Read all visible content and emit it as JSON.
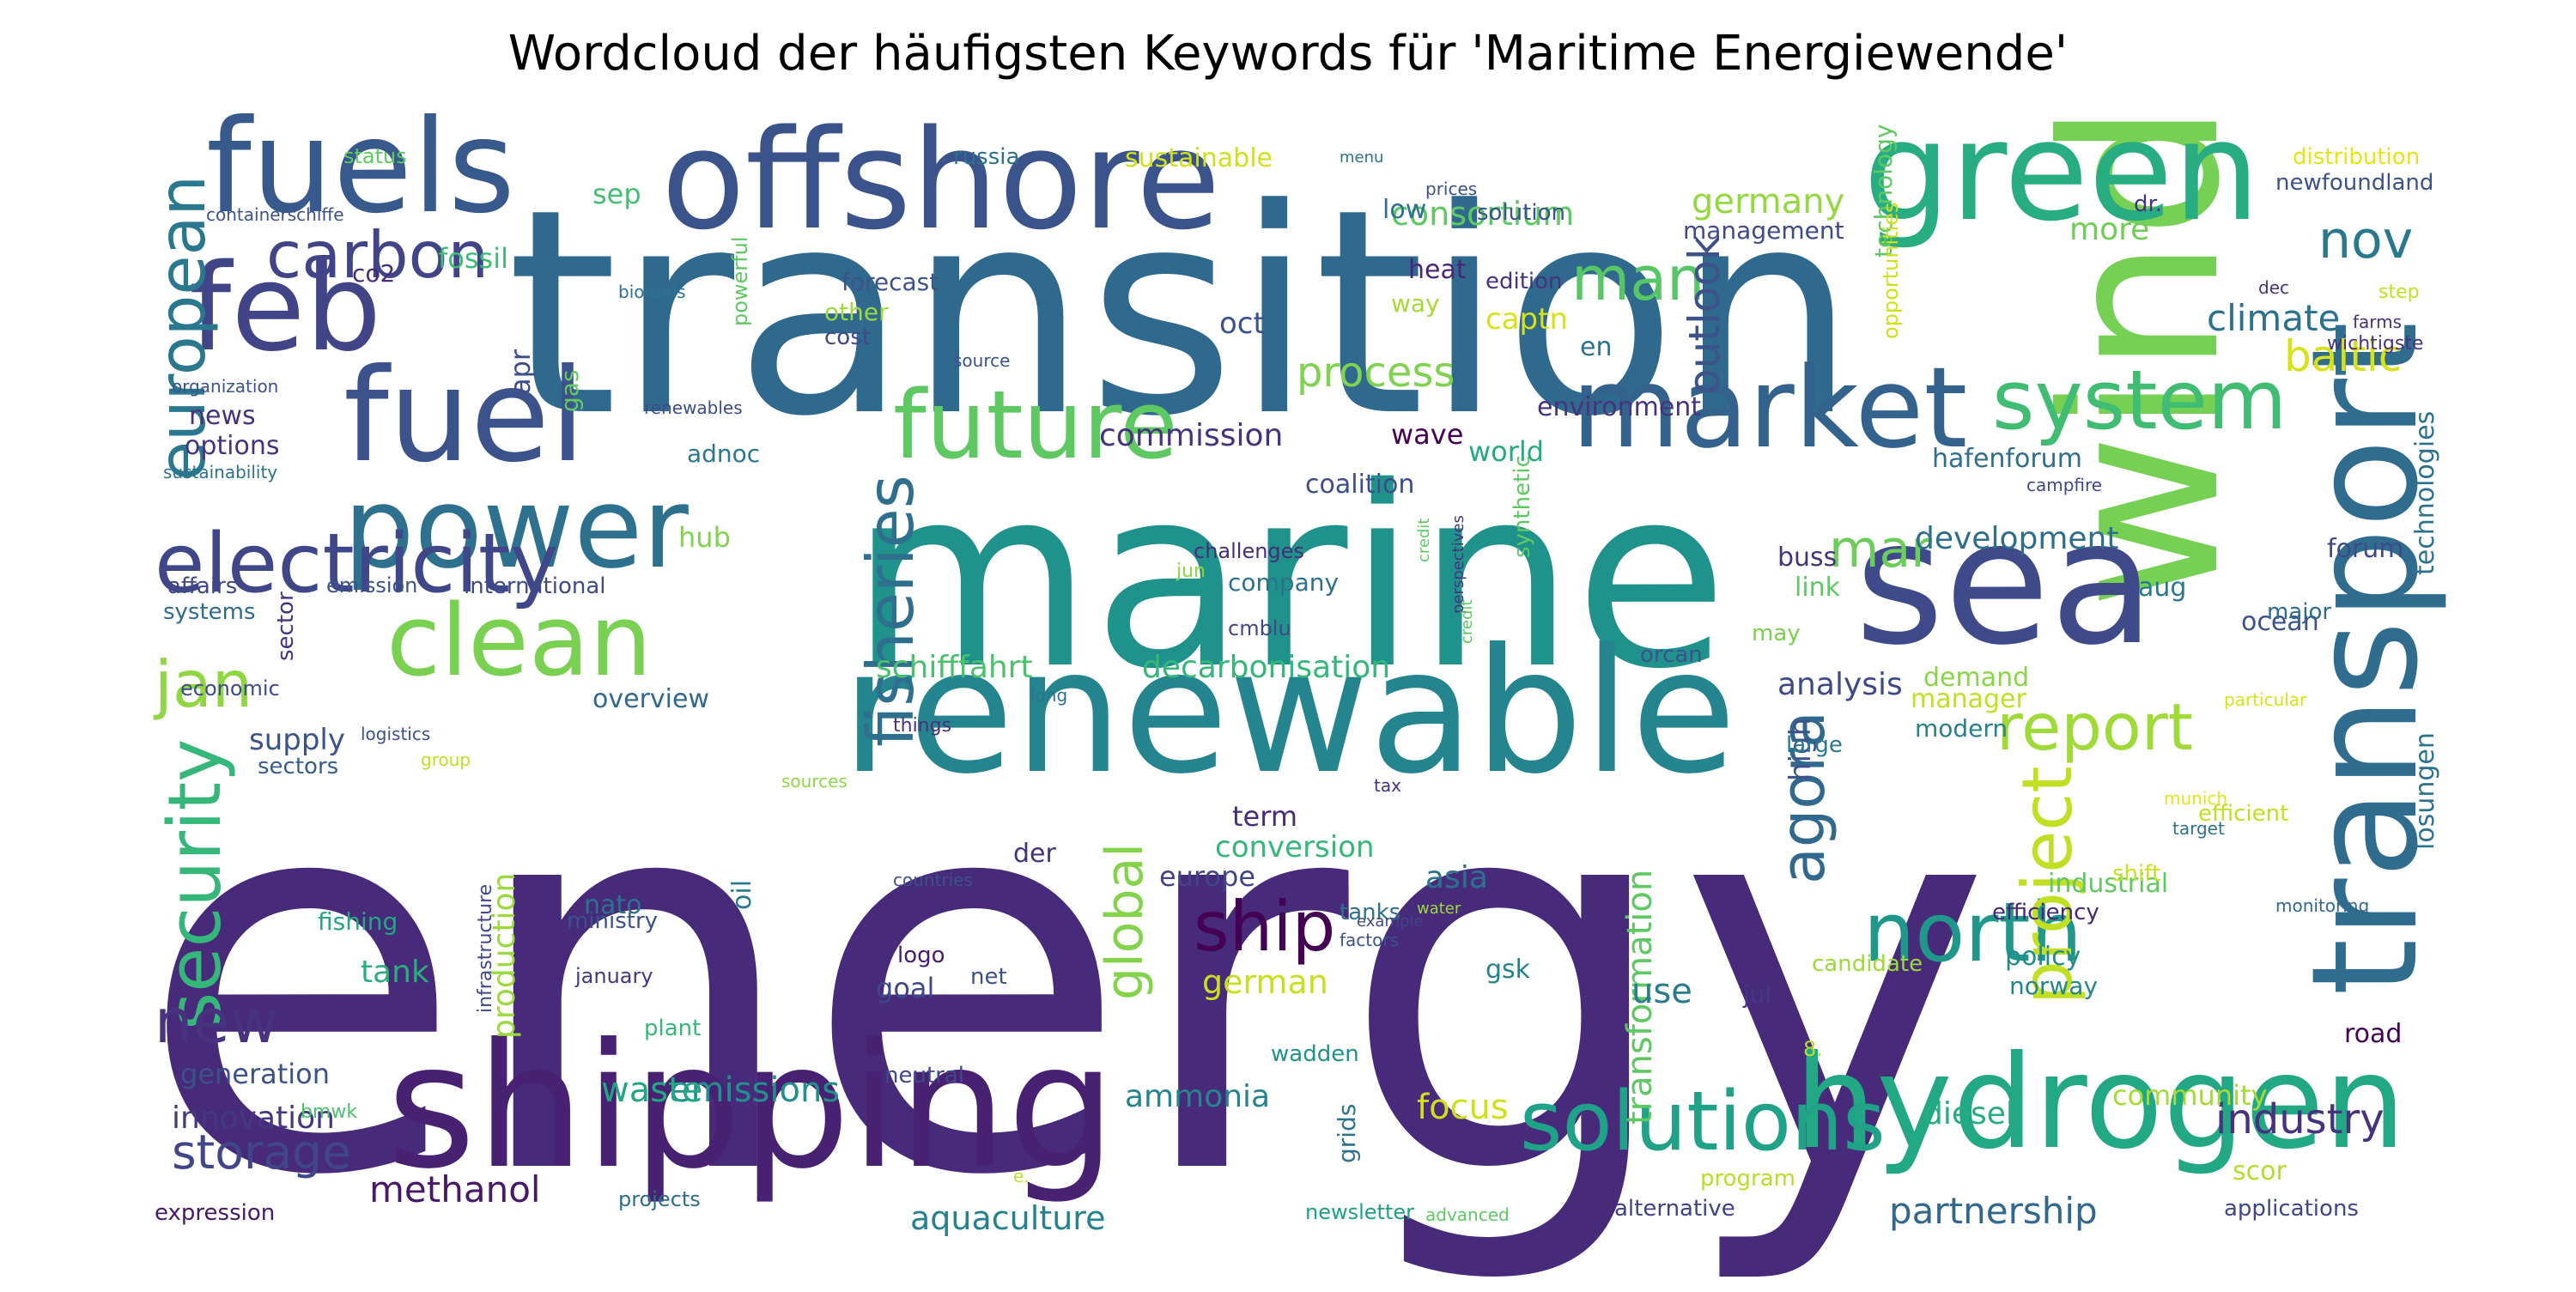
{
  "title": "Wordcloud der häufigsten Keywords für 'Maritime Energiewende'",
  "words": [
    {
      "text": "energy",
      "color": "#472a7a"
    },
    {
      "text": "transition",
      "color": "#30698e"
    },
    {
      "text": "marine",
      "color": "#20928c"
    },
    {
      "text": "wind",
      "color": "#75d054"
    },
    {
      "text": "shipping",
      "color": "#482173"
    },
    {
      "text": "renewable",
      "color": "#25858e"
    },
    {
      "text": "offshore",
      "color": "#3a538b"
    },
    {
      "text": "green",
      "color": "#27ad81"
    },
    {
      "text": "hydrogen",
      "color": "#22a884"
    },
    {
      "text": "sea",
      "color": "#3e4a89"
    },
    {
      "text": "transport",
      "color": "#2f6c8e"
    },
    {
      "text": "fuels",
      "color": "#38598c"
    },
    {
      "text": "power",
      "color": "#2d718e"
    },
    {
      "text": "fuel",
      "color": "#3b528b"
    },
    {
      "text": "market",
      "color": "#33638d"
    },
    {
      "text": "future",
      "color": "#5ec962"
    },
    {
      "text": "clean",
      "color": "#7ad151"
    },
    {
      "text": "feb",
      "color": "#414487"
    },
    {
      "text": "electricity",
      "color": "#3f4788"
    },
    {
      "text": "system",
      "color": "#40bd72"
    },
    {
      "text": "solutions",
      "color": "#1fa287"
    },
    {
      "text": "north",
      "color": "#1f988b"
    },
    {
      "text": "fisheries",
      "color": "#2e6f8e"
    },
    {
      "text": "security",
      "color": "#35b779"
    },
    {
      "text": "carbon",
      "color": "#414487"
    },
    {
      "text": "project",
      "color": "#c2df23"
    },
    {
      "text": "global",
      "color": "#84d44b"
    },
    {
      "text": "agora",
      "color": "#31688e"
    },
    {
      "text": "report",
      "color": "#a0da39"
    },
    {
      "text": "ship",
      "color": "#440154"
    },
    {
      "text": "jan",
      "color": "#90d743"
    },
    {
      "text": "man",
      "color": "#56c667"
    },
    {
      "text": "nov",
      "color": "#29798e"
    },
    {
      "text": "new",
      "color": "#46327e"
    },
    {
      "text": "mar",
      "color": "#6ccd5a"
    },
    {
      "text": "european",
      "color": "#2a788e"
    },
    {
      "text": "industry",
      "color": "#46327e"
    },
    {
      "text": "storage",
      "color": "#404688"
    },
    {
      "text": "methanol",
      "color": "#48186a"
    },
    {
      "text": "partnership",
      "color": "#31688e"
    },
    {
      "text": "aquaculture",
      "color": "#26828e"
    },
    {
      "text": "process",
      "color": "#7fd34e"
    },
    {
      "text": "climate",
      "color": "#2c728e"
    },
    {
      "text": "baltic",
      "color": "#d8e219"
    },
    {
      "text": "germany",
      "color": "#95d840"
    },
    {
      "text": "consortium",
      "color": "#5ec962"
    },
    {
      "text": "outlook",
      "color": "#3b528b"
    },
    {
      "text": "schifffahrt",
      "color": "#4ac16d"
    },
    {
      "text": "decarbonisation",
      "color": "#35b779"
    },
    {
      "text": "commission",
      "color": "#46337e"
    },
    {
      "text": "development",
      "color": "#2e6e8e"
    },
    {
      "text": "analysis",
      "color": "#3e4989"
    },
    {
      "text": "emissions",
      "color": "#21908d"
    },
    {
      "text": "waste",
      "color": "#22a785"
    },
    {
      "text": "ammonia",
      "color": "#25848e"
    },
    {
      "text": "german",
      "color": "#c8e020"
    },
    {
      "text": "innovation",
      "color": "#453882"
    },
    {
      "text": "generation",
      "color": "#3b528b"
    },
    {
      "text": "transformation",
      "color": "#5ec962"
    },
    {
      "text": "production",
      "color": "#9bd93c"
    },
    {
      "text": "diesel",
      "color": "#26ad81"
    },
    {
      "text": "community",
      "color": "#a5db36"
    },
    {
      "text": "focus",
      "color": "#d0e11c"
    },
    {
      "text": "use",
      "color": "#287c8e"
    },
    {
      "text": "asia",
      "color": "#2c728e"
    },
    {
      "text": "europe",
      "color": "#414487"
    },
    {
      "text": "conversion",
      "color": "#35b779"
    },
    {
      "text": "term",
      "color": "#472c7a"
    },
    {
      "text": "tank",
      "color": "#29af7f"
    },
    {
      "text": "goal",
      "color": "#3f4889"
    },
    {
      "text": "nato",
      "color": "#2c728e"
    },
    {
      "text": "supply",
      "color": "#3b528b"
    },
    {
      "text": "news",
      "color": "#46327e"
    },
    {
      "text": "options",
      "color": "#46337e"
    },
    {
      "text": "hub",
      "color": "#7fd34e"
    },
    {
      "text": "fossil",
      "color": "#3bbb75"
    },
    {
      "text": "co2",
      "color": "#472c7a"
    },
    {
      "text": "apr",
      "color": "#3e4c8a"
    },
    {
      "text": "gas",
      "color": "#65cb5e"
    },
    {
      "text": "oct",
      "color": "#3b528b"
    },
    {
      "text": "heat",
      "color": "#482576"
    },
    {
      "text": "sep",
      "color": "#44bf70"
    },
    {
      "text": "world",
      "color": "#25ab82"
    },
    {
      "text": "environment",
      "color": "#46337e"
    },
    {
      "text": "wave",
      "color": "#440154"
    },
    {
      "text": "coalition",
      "color": "#3d4d8a"
    },
    {
      "text": "adnoc",
      "color": "#2a788e"
    },
    {
      "text": "management",
      "color": "#3e4a89"
    },
    {
      "text": "more",
      "color": "#6ece58"
    },
    {
      "text": "hafenforum",
      "color": "#2e6e8e"
    },
    {
      "text": "technologies",
      "color": "#2c728e"
    },
    {
      "text": "forum",
      "color": "#3e4a89"
    },
    {
      "text": "buss",
      "color": "#46337e"
    },
    {
      "text": "link",
      "color": "#5ec962"
    },
    {
      "text": "aug",
      "color": "#2a788e"
    },
    {
      "text": "ocean",
      "color": "#3b528b"
    },
    {
      "text": "demand",
      "color": "#8bd646"
    },
    {
      "text": "manager",
      "color": "#c2df23"
    },
    {
      "text": "modern",
      "color": "#27808e"
    },
    {
      "text": "high",
      "color": "#3b528b"
    },
    {
      "text": "large",
      "color": "#2a788e"
    },
    {
      "text": "industrial",
      "color": "#5ec962"
    },
    {
      "text": "efficiency",
      "color": "#482677"
    },
    {
      "text": "policy",
      "color": "#238a8d"
    },
    {
      "text": "norway",
      "color": "#25858e"
    },
    {
      "text": "jul",
      "color": "#453882"
    },
    {
      "text": "candidate",
      "color": "#9dd93b"
    },
    {
      "text": "road",
      "color": "#440154"
    },
    {
      "text": "scor",
      "color": "#b5de2b"
    },
    {
      "text": "applications",
      "color": "#404688"
    },
    {
      "text": "alternative",
      "color": "#424086"
    },
    {
      "text": "program",
      "color": "#bade28"
    },
    {
      "text": "newsletter",
      "color": "#1f9f88"
    },
    {
      "text": "advanced",
      "color": "#5ec962"
    },
    {
      "text": "grids",
      "color": "#2c728e"
    },
    {
      "text": "wadden",
      "color": "#21918c"
    },
    {
      "text": "plant",
      "color": "#37b878"
    },
    {
      "text": "neutral",
      "color": "#3f4889"
    },
    {
      "text": "net",
      "color": "#3b528b"
    },
    {
      "text": "logo",
      "color": "#481d6f"
    },
    {
      "text": "january",
      "color": "#453882"
    },
    {
      "text": "ministry",
      "color": "#3b528b"
    },
    {
      "text": "infrastructure",
      "color": "#3f4889"
    },
    {
      "text": "fishing",
      "color": "#22a785"
    },
    {
      "text": "oil",
      "color": "#2a788e"
    },
    {
      "text": "gsk",
      "color": "#26828e"
    },
    {
      "text": "expression",
      "color": "#48186a"
    },
    {
      "text": "projects",
      "color": "#2e6e8e"
    },
    {
      "text": "bmwk",
      "color": "#4ac16d"
    },
    {
      "text": "international",
      "color": "#3e4a89"
    },
    {
      "text": "emission",
      "color": "#3b528b"
    },
    {
      "text": "affairs",
      "color": "#404688"
    },
    {
      "text": "systems",
      "color": "#2f6b8e"
    },
    {
      "text": "sector",
      "color": "#46327e"
    },
    {
      "text": "economic",
      "color": "#3e4a89"
    },
    {
      "text": "sectors",
      "color": "#355e8d"
    },
    {
      "text": "company",
      "color": "#2c728e"
    },
    {
      "text": "challenges",
      "color": "#472c7a"
    },
    {
      "text": "cmblu",
      "color": "#3e4989"
    },
    {
      "text": "overview",
      "color": "#31688e"
    },
    {
      "text": "things",
      "color": "#46327e"
    },
    {
      "text": "countries",
      "color": "#3b528b"
    },
    {
      "text": "sources",
      "color": "#8fd744"
    },
    {
      "text": "der",
      "color": "#46337e"
    },
    {
      "text": "tanks",
      "color": "#2c728e"
    },
    {
      "text": "factors",
      "color": "#3b528b"
    },
    {
      "text": "example",
      "color": "#404688"
    },
    {
      "text": "water",
      "color": "#9dd93b"
    },
    {
      "text": "tax",
      "color": "#46327e"
    },
    {
      "text": "synthetic",
      "color": "#5ec962"
    },
    {
      "text": "orcan",
      "color": "#3b528b"
    },
    {
      "text": "may",
      "color": "#7ad151"
    },
    {
      "text": "perspectives",
      "color": "#46337e"
    },
    {
      "text": "credit",
      "color": "#5ec962"
    },
    {
      "text": "jun",
      "color": "#8bd646"
    },
    {
      "text": "long",
      "color": "#2c728e"
    },
    {
      "text": "logistics",
      "color": "#3b528b"
    },
    {
      "text": "group",
      "color": "#c2df23"
    },
    {
      "text": "particular",
      "color": "#d8e219"
    },
    {
      "text": "munich",
      "color": "#e5e419"
    },
    {
      "text": "target",
      "color": "#2c728e"
    },
    {
      "text": "shift",
      "color": "#c8e020"
    },
    {
      "text": "efficient",
      "color": "#c2df23"
    },
    {
      "text": "monitoring",
      "color": "#31688e"
    },
    {
      "text": "losungen",
      "color": "#2c728e"
    },
    {
      "text": "8.",
      "color": "#b5de2b"
    },
    {
      "text": "e.",
      "color": "#c2df23"
    },
    {
      "text": "major",
      "color": "#2f6b8e"
    },
    {
      "text": "campfire",
      "color": "#3e4a89"
    },
    {
      "text": "credit2",
      "color": "#5ec962"
    },
    {
      "text": "organization",
      "color": "#3b528b"
    },
    {
      "text": "biofuels",
      "color": "#2c728e"
    },
    {
      "text": "containerschiffe",
      "color": "#3b528b"
    },
    {
      "text": "status",
      "color": "#5ec962"
    },
    {
      "text": "russia",
      "color": "#2c728e"
    },
    {
      "text": "sustainable",
      "color": "#d0e11c"
    },
    {
      "text": "menu",
      "color": "#2c728e"
    },
    {
      "text": "prices",
      "color": "#3b528b"
    },
    {
      "text": "distribution",
      "color": "#e5e419"
    },
    {
      "text": "newfoundland",
      "color": "#3b528b"
    },
    {
      "text": "dr.",
      "color": "#46327e"
    },
    {
      "text": "low",
      "color": "#2c728e"
    },
    {
      "text": "solution",
      "color": "#3b528b"
    },
    {
      "text": "edition",
      "color": "#46327e"
    },
    {
      "text": "forecast",
      "color": "#3b528b"
    },
    {
      "text": "other",
      "color": "#9bd93c"
    },
    {
      "text": "cost",
      "color": "#3e4a89"
    },
    {
      "text": "powerful",
      "color": "#5ec962"
    },
    {
      "text": "source",
      "color": "#3b528b"
    },
    {
      "text": "renewables",
      "color": "#3e4a89"
    },
    {
      "text": "sustainability",
      "color": "#2c728e"
    },
    {
      "text": "way",
      "color": "#a5db36"
    },
    {
      "text": "captn",
      "color": "#d8e219"
    },
    {
      "text": "en",
      "color": "#2c728e"
    },
    {
      "text": "technology",
      "color": "#5ec962"
    },
    {
      "text": "opportunities",
      "color": "#d0e11c"
    },
    {
      "text": "dec",
      "color": "#46327e"
    },
    {
      "text": "step",
      "color": "#c2df23"
    },
    {
      "text": "farms",
      "color": "#46327e"
    },
    {
      "text": "wichtigste",
      "color": "#46327e"
    }
  ]
}
